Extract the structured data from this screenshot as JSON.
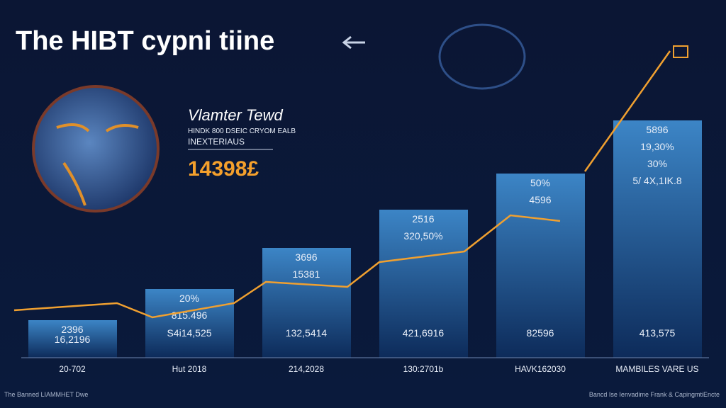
{
  "header": {
    "title": "The HIBT cypni tiine"
  },
  "panel": {
    "title": "Vlamter Tewd",
    "line1": "HINDK 800 DSEIC CRYOM EALB",
    "line2": "INEXTERIAUS",
    "amount": "14398£"
  },
  "bars": [
    {
      "labels": [
        "2396",
        "16,2196"
      ],
      "footer": "20-702"
    },
    {
      "labels": [
        "20%",
        "815.496",
        "S4i14,525"
      ],
      "footer": "Hut 2018"
    },
    {
      "labels": [
        "3696",
        "15381",
        "132,5414"
      ],
      "footer": "214,2028"
    },
    {
      "labels": [
        "2516",
        "320,50%",
        "421,6916"
      ],
      "footer": "130:2701b"
    },
    {
      "labels": [
        "50%",
        "4596",
        "82596"
      ],
      "footer": "HAVK162030"
    },
    {
      "labels": [
        "5896",
        "19,30%",
        "30%",
        "5/ 4X,1IK.8",
        "413,575"
      ],
      "footer": "MAMBILES VARE US"
    }
  ],
  "footer": {
    "left": "The Banned LIAMMHET Dwe",
    "right": "Bancd Ise Ienvadime Frank & CapingmtiEncte"
  }
}
